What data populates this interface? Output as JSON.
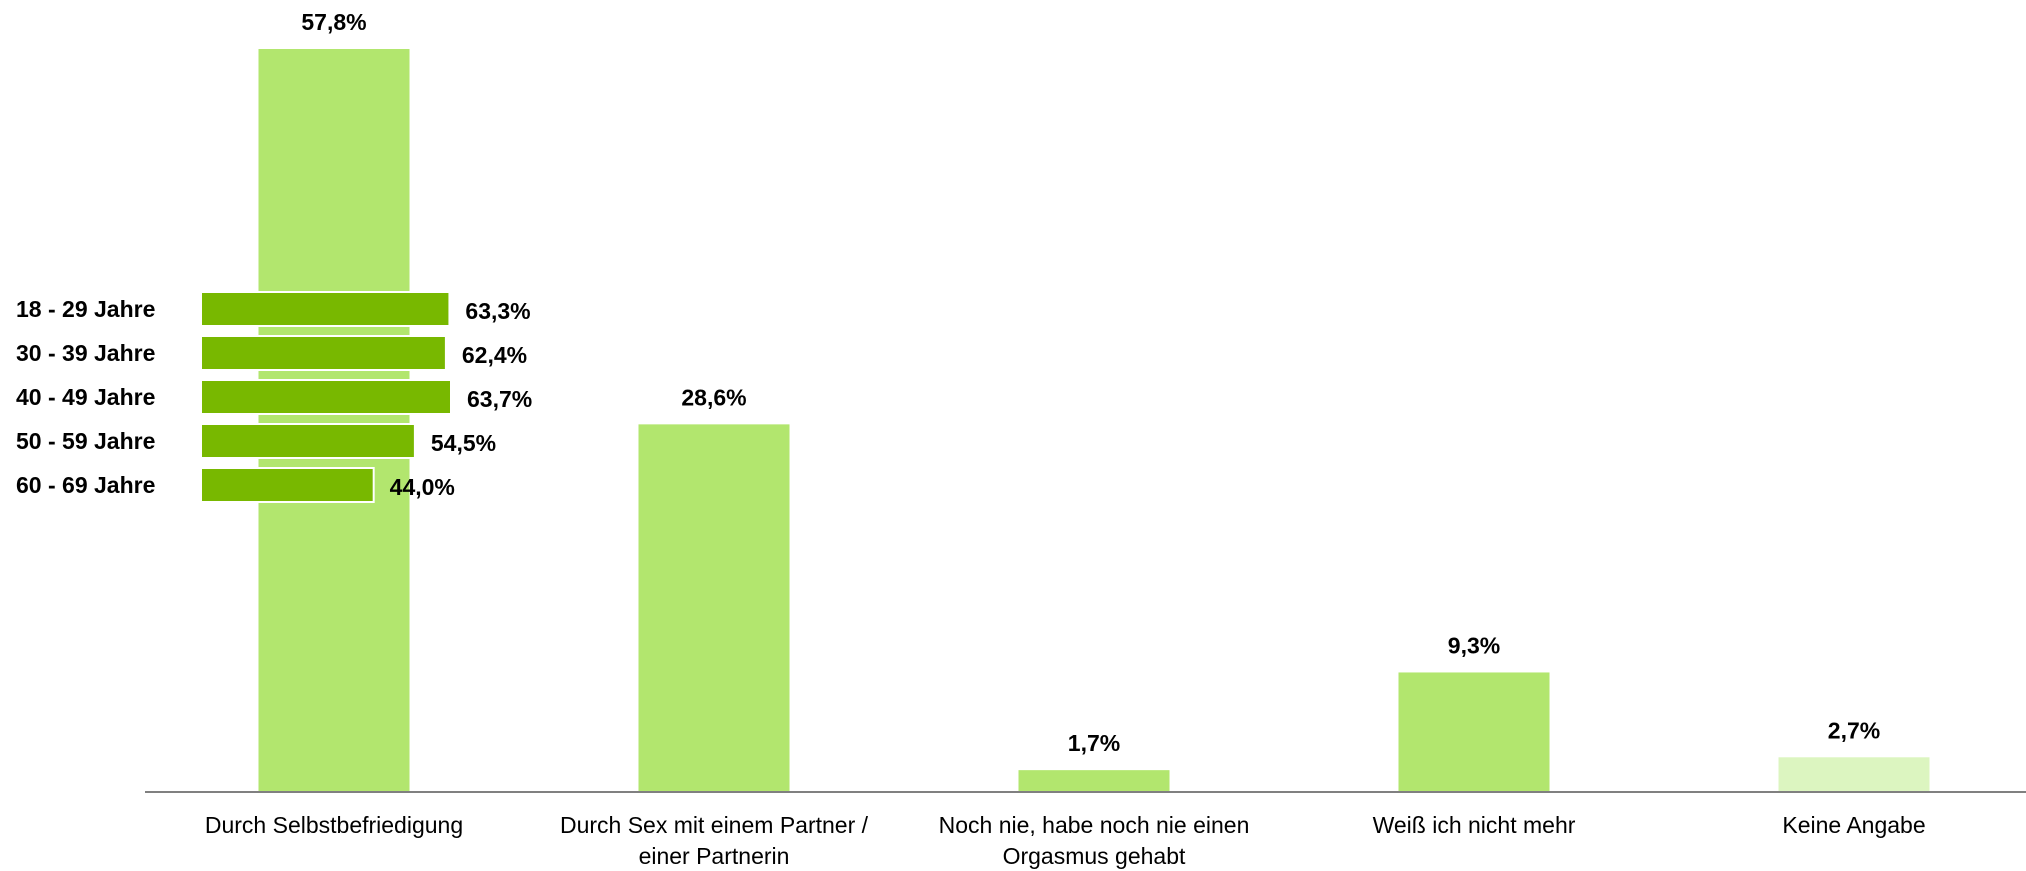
{
  "chart_data": {
    "type": "bar",
    "title": "",
    "xlabel": "",
    "ylabel": "",
    "ylim": [
      0,
      60
    ],
    "grid": false,
    "categories": [
      [
        "Durch Selbstbefriedigung"
      ],
      [
        "Durch Sex mit einem Partner /",
        "einer Partnerin"
      ],
      [
        "Noch nie, habe noch nie einen",
        "Orgasmus gehabt"
      ],
      [
        "Weiß ich nicht mehr"
      ],
      [
        "Keine Angabe"
      ]
    ],
    "values": [
      57.8,
      28.6,
      1.7,
      9.3,
      2.7
    ],
    "value_labels": [
      "57,8%",
      "28,6%",
      "1,7%",
      "9,3%",
      "2,7%"
    ],
    "bar_colors": [
      "#b2e66e",
      "#b2e66e",
      "#b2e66e",
      "#b2e66e",
      "#dcf5c0"
    ],
    "inset": {
      "type": "bar",
      "orientation": "horizontal",
      "color": "#78b800",
      "categories": [
        "18 - 29 Jahre",
        "30 - 39 Jahre",
        "40 - 49 Jahre",
        "50 - 59 Jahre",
        "60 - 69 Jahre"
      ],
      "values": [
        63.3,
        62.4,
        63.7,
        54.5,
        44.0
      ],
      "value_labels": [
        "63,3%",
        "62,4%",
        "63,7%",
        "54,5%",
        "44,0%"
      ]
    }
  }
}
